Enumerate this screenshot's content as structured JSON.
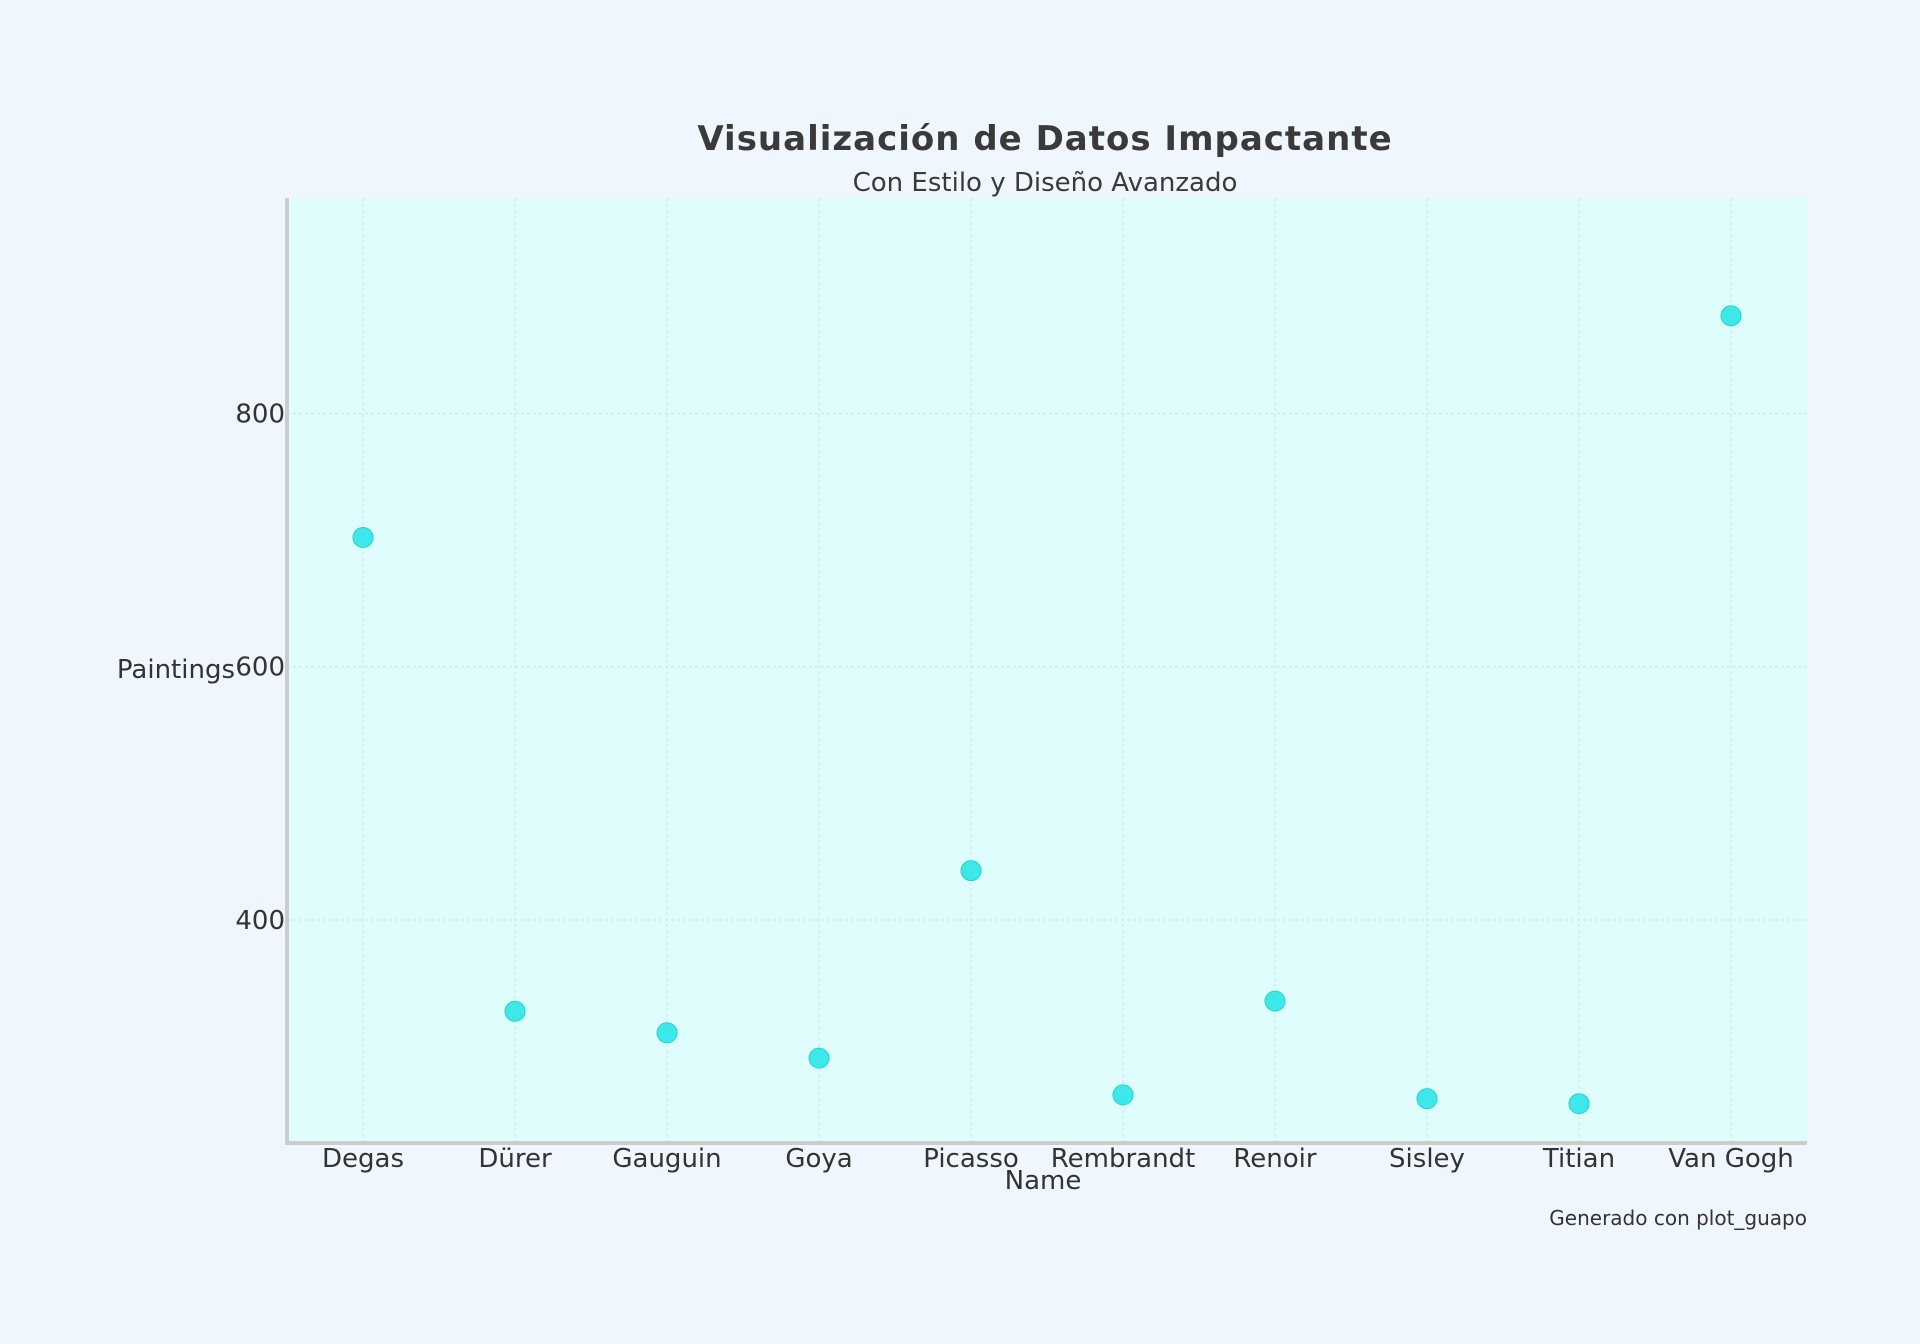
{
  "chart_data": {
    "type": "scatter",
    "title": "Visualización de Datos Impactante",
    "subtitle": "Con Estilo y Diseño Avanzado",
    "xlabel": "Name",
    "ylabel": "Paintings",
    "categories": [
      "Degas",
      "Dürer",
      "Gauguin",
      "Goya",
      "Picasso",
      "Rembrandt",
      "Renoir",
      "Sisley",
      "Titian",
      "Van Gogh"
    ],
    "values": [
      702,
      328,
      311,
      291,
      439,
      262,
      336,
      259,
      255,
      877
    ],
    "ylim": [
      224,
      970
    ],
    "yticks": [
      400,
      600,
      800
    ],
    "grid": true,
    "marker_color": "#2ee6e6",
    "plot_background": "#e0fdfd",
    "page_background": "#eff6fe",
    "footer": "Generado con plot_guapo"
  }
}
